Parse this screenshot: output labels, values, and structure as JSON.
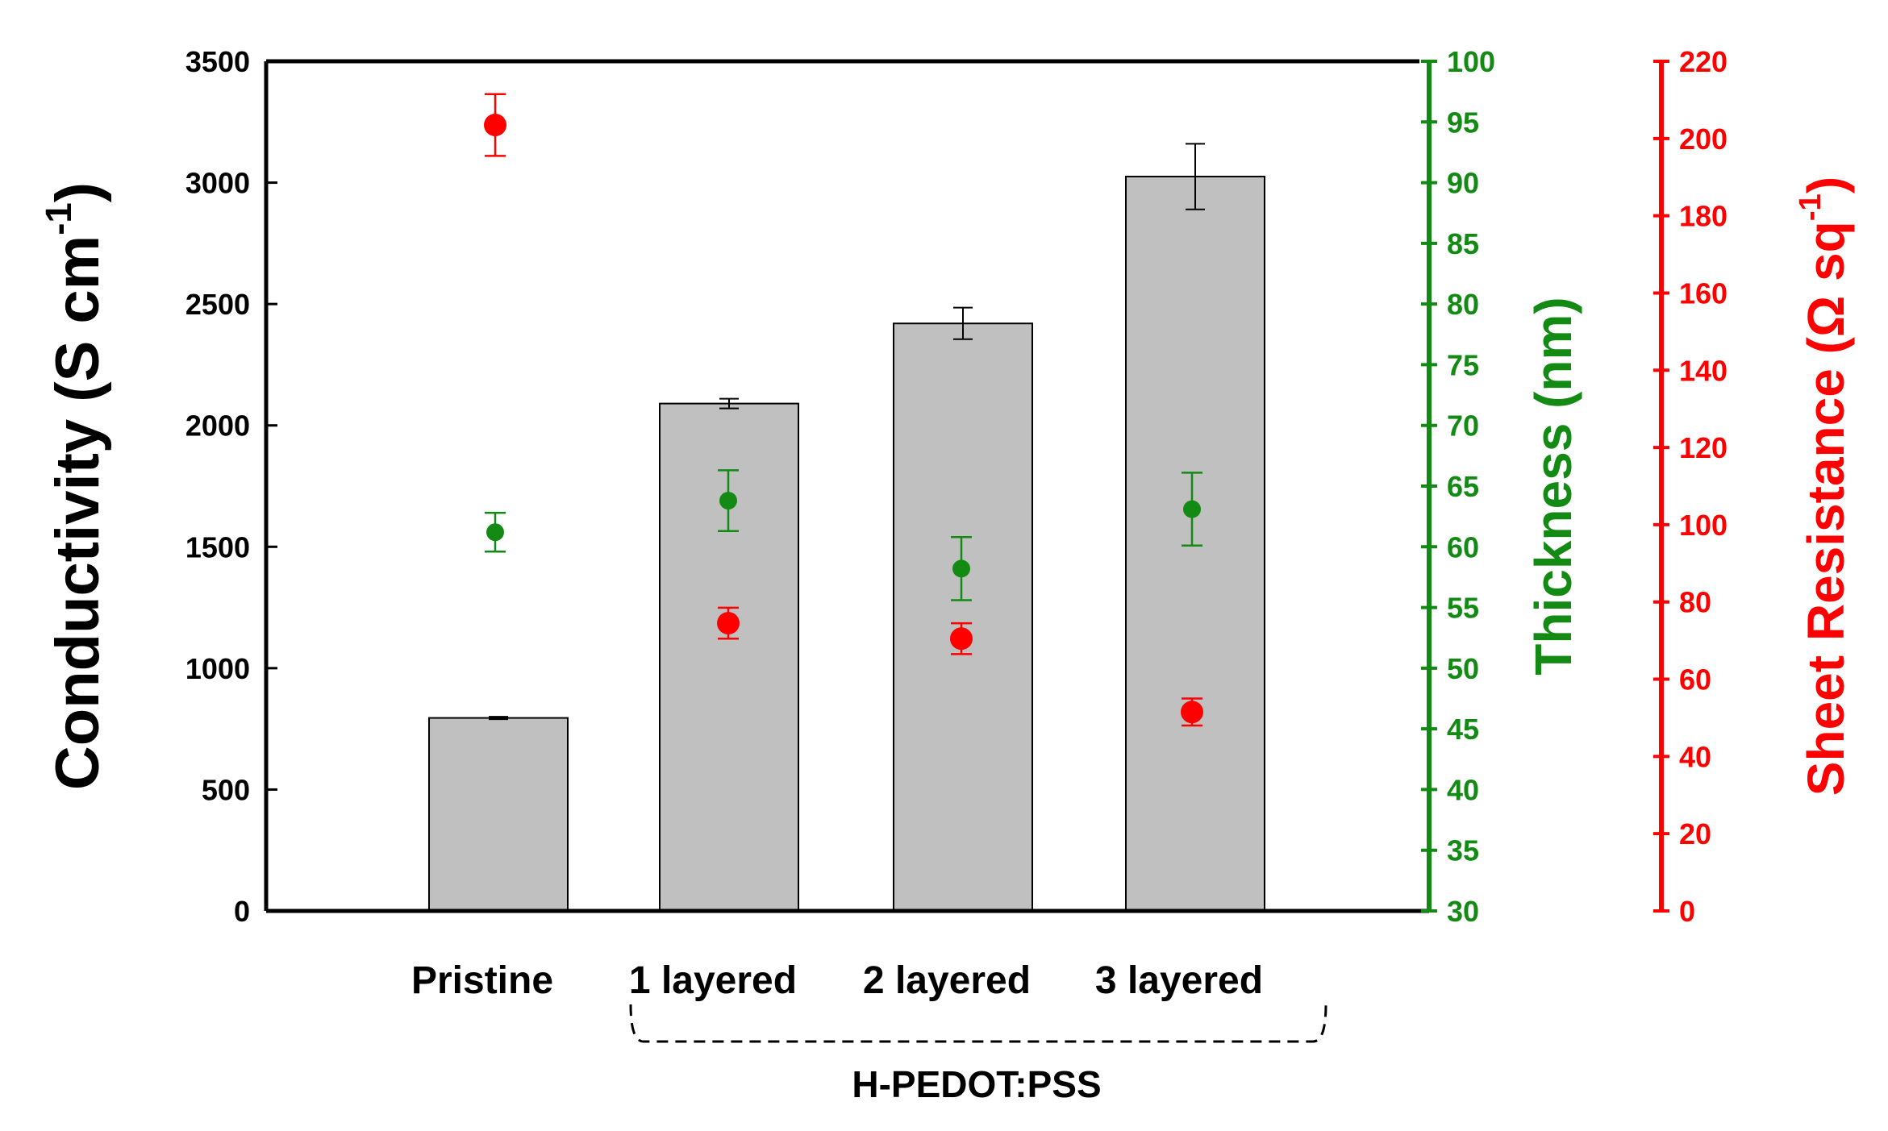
{
  "chart_data": {
    "type": "bar",
    "categories": [
      "Pristine",
      "1 layered",
      "2 layered",
      "3 layered"
    ],
    "group_label": "H-PEDOT:PSS",
    "group_categories": [
      "1 layered",
      "2 layered",
      "3 layered"
    ],
    "axes": {
      "left": {
        "label": "Conductivity (S cm",
        "label_sup": "-1",
        "label_tail": ")",
        "ylim": [
          0,
          3500
        ],
        "ticks": [
          0,
          500,
          1000,
          1500,
          2000,
          2500,
          3000,
          3500
        ],
        "color": "#000000"
      },
      "right1": {
        "label": "Thickness (nm)",
        "ylim": [
          30,
          100
        ],
        "ticks": [
          30,
          35,
          40,
          45,
          50,
          55,
          60,
          65,
          70,
          75,
          80,
          85,
          90,
          95,
          100
        ],
        "color": "#138a13"
      },
      "right2": {
        "label": "Sheet Resistance (Ω sq",
        "label_sup": "-1",
        "label_tail": ")",
        "ylim": [
          0,
          220
        ],
        "ticks": [
          0,
          20,
          40,
          60,
          80,
          100,
          120,
          140,
          160,
          180,
          200,
          220
        ],
        "color": "#ff0000"
      }
    },
    "series": [
      {
        "name": "Conductivity",
        "axis": "left",
        "kind": "bar",
        "color": "#c0c0c0",
        "values": [
          795,
          2090,
          2420,
          3025
        ],
        "errors": [
          5,
          20,
          65,
          135
        ]
      },
      {
        "name": "Thickness",
        "axis": "right1",
        "kind": "scatter",
        "color": "#138a13",
        "values": [
          61.2,
          63.8,
          58.2,
          63.1
        ],
        "errors": [
          1.6,
          2.5,
          2.6,
          3.0
        ]
      },
      {
        "name": "Sheet Resistance",
        "axis": "right2",
        "kind": "scatter",
        "color": "#ff0000",
        "values": [
          203.5,
          74.5,
          70.5,
          51.5
        ],
        "errors": [
          8,
          4,
          4,
          3.5
        ]
      }
    ]
  }
}
